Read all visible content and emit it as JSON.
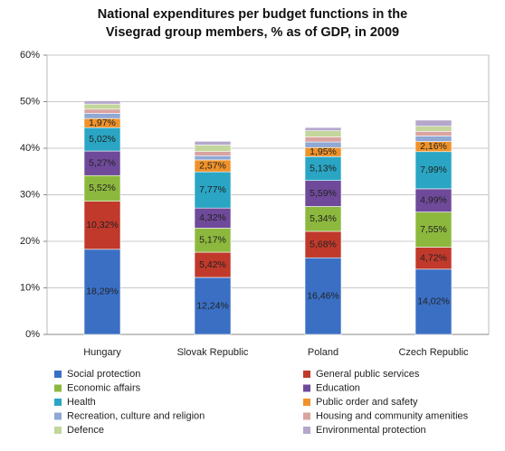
{
  "chart_data": {
    "type": "stacked-bar",
    "title": "National expenditures per budget functions in the Visegrad group members, % as of GDP, in 2009",
    "categories": [
      "Hungary",
      "Slovak Republic",
      "Poland",
      "Czech Republic"
    ],
    "ylim": [
      0,
      60
    ],
    "yticks": [
      {
        "value": 0,
        "label": "0%"
      },
      {
        "value": 10,
        "label": "10%"
      },
      {
        "value": 20,
        "label": "20%"
      },
      {
        "value": 30,
        "label": "30%"
      },
      {
        "value": 40,
        "label": "40%"
      },
      {
        "value": 50,
        "label": "50%"
      },
      {
        "value": 60,
        "label": "60%"
      }
    ],
    "grid": true,
    "series": [
      {
        "name": "Social protection",
        "color": "#3a6fc4",
        "values": [
          18.29,
          12.24,
          16.46,
          14.02
        ],
        "value_labels": [
          "18,29%",
          "12,24%",
          "16,46%",
          "14,02%"
        ]
      },
      {
        "name": "General public services",
        "color": "#c0392b",
        "values": [
          10.32,
          5.42,
          5.68,
          4.72
        ],
        "value_labels": [
          "10,32%",
          "5,42%",
          "5,68%",
          "4,72%"
        ]
      },
      {
        "name": "Economic affairs",
        "color": "#8db83e",
        "values": [
          5.52,
          5.17,
          5.34,
          7.55
        ],
        "value_labels": [
          "5,52%",
          "5,17%",
          "5,34%",
          "7,55%"
        ]
      },
      {
        "name": "Education",
        "color": "#6f4a9a",
        "values": [
          5.27,
          4.32,
          5.59,
          4.99
        ],
        "value_labels": [
          "5,27%",
          "4,32%",
          "5,59%",
          "4,99%"
        ]
      },
      {
        "name": "Health",
        "color": "#2aa6c4",
        "values": [
          5.02,
          7.77,
          5.13,
          7.99
        ],
        "value_labels": [
          "5,02%",
          "7,77%",
          "5,13%",
          "7,99%"
        ]
      },
      {
        "name": "Public order and safety",
        "color": "#f0922a",
        "values": [
          1.97,
          2.57,
          1.95,
          2.16
        ],
        "value_labels": [
          "1,97%",
          "2,57%",
          "1,95%",
          "2,16%"
        ]
      },
      {
        "name": "Recreation, culture and religion",
        "color": "#8fa8d4",
        "values": [
          1.1,
          0.9,
          1.2,
          1.2
        ]
      },
      {
        "name": "Housing and community amenities",
        "color": "#d9a3a1",
        "values": [
          0.9,
          0.9,
          1.1,
          1.0
        ]
      },
      {
        "name": "Defence",
        "color": "#c3d69b",
        "values": [
          1.1,
          1.4,
          1.3,
          1.1
        ]
      },
      {
        "name": "Environmental protection",
        "color": "#b5a7cc",
        "values": [
          0.7,
          0.8,
          0.7,
          1.3
        ]
      }
    ]
  }
}
